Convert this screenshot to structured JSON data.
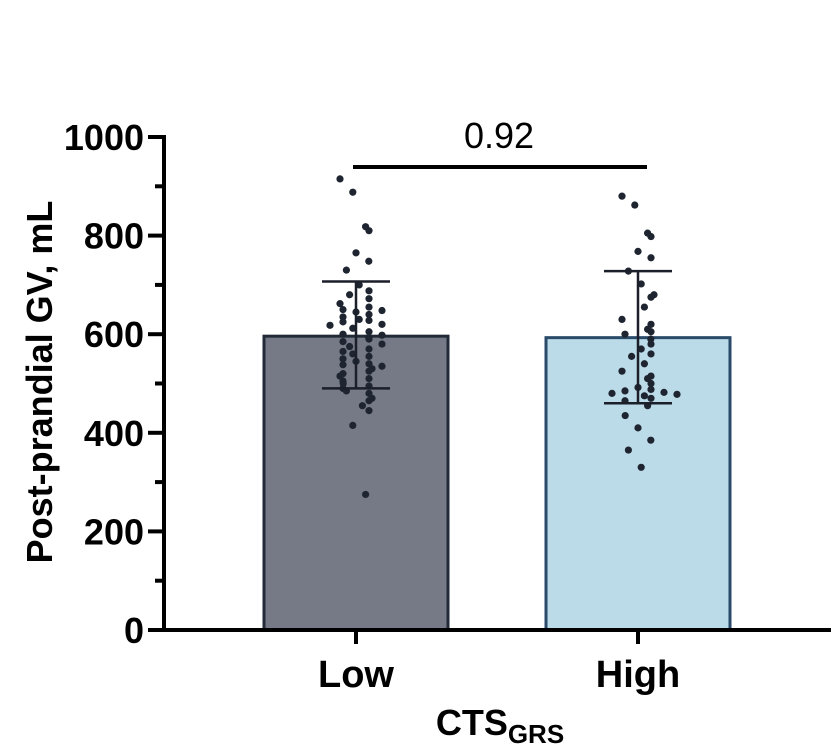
{
  "chart_data": {
    "type": "bar",
    "categories": [
      "Low",
      "High"
    ],
    "values": [
      596,
      593
    ],
    "error_bars": [
      {
        "category": "Low",
        "lower": 490,
        "upper": 707
      },
      {
        "category": "High",
        "lower": 460,
        "upper": 728
      }
    ],
    "colors": [
      "#767a87",
      "#bcdbe8"
    ],
    "bar_edge_colors": [
      "#222a38",
      "#2a4a6a"
    ],
    "point_color": "#1e2530",
    "points": [
      {
        "category": "Low",
        "values": [
          915,
          888,
          818,
          810,
          765,
          748,
          730,
          700,
          688,
          680,
          672,
          662,
          655,
          650,
          648,
          645,
          640,
          635,
          630,
          628,
          625,
          620,
          618,
          612,
          605,
          600,
          598,
          592,
          590,
          585,
          580,
          575,
          570,
          565,
          560,
          555,
          550,
          545,
          540,
          538,
          535,
          530,
          525,
          520,
          515,
          510,
          505,
          500,
          495,
          490,
          485,
          480,
          470,
          465,
          455,
          445,
          415,
          275
        ]
      },
      {
        "category": "High",
        "values": [
          880,
          862,
          805,
          798,
          768,
          755,
          728,
          702,
          680,
          675,
          655,
          630,
          620,
          610,
          605,
          600,
          590,
          580,
          570,
          560,
          555,
          540,
          525,
          515,
          510,
          500,
          492,
          488,
          485,
          482,
          480,
          478,
          475,
          470,
          465,
          455,
          435,
          410,
          385,
          365,
          330
        ]
      }
    ],
    "ylim": [
      0,
      1000
    ],
    "yticks": [
      "0",
      "200",
      "400",
      "600",
      "800",
      "1000"
    ],
    "ylabel": "Post-prandial GV, mL",
    "xlabel": "CTS",
    "xlabel_sub": "GRS",
    "annotation": {
      "text": "0.92",
      "from": "Low",
      "to": "High"
    },
    "grid": false,
    "legend": "none"
  }
}
